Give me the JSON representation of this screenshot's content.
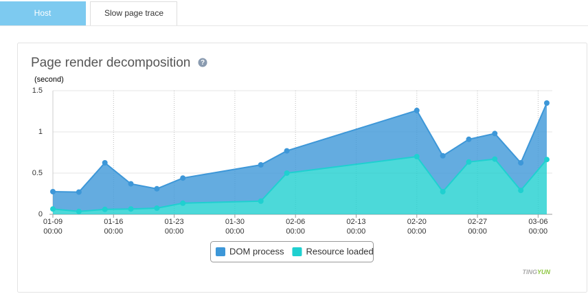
{
  "tabs": [
    "Host",
    "Slow page trace"
  ],
  "chart_data": {
    "type": "area",
    "stacked": true,
    "title": "Page render decomposition",
    "y_label": "(second)",
    "x": [
      "01-09 00:00",
      "01-12 00:00",
      "01-15 00:00",
      "01-18 00:00",
      "01-21 00:00",
      "01-24 00:00",
      "02-02 00:00",
      "02-05 00:00",
      "02-20 00:00",
      "02-23 00:00",
      "02-26 00:00",
      "03-01 00:00",
      "03-04 00:00",
      "03-07 00:00"
    ],
    "series": [
      {
        "name": "DOM process",
        "color": "#3d97d8",
        "values": [
          0.21,
          0.235,
          0.565,
          0.305,
          0.235,
          0.305,
          0.44,
          0.27,
          0.56,
          0.435,
          0.275,
          0.31,
          0.335,
          0.685
        ]
      },
      {
        "name": "Resource loaded",
        "color": "#1fd0d0",
        "values": [
          0.065,
          0.035,
          0.06,
          0.065,
          0.075,
          0.135,
          0.16,
          0.5,
          0.7,
          0.275,
          0.635,
          0.67,
          0.29,
          0.665
        ]
      }
    ],
    "xlim": [
      "01-09 00:00",
      "03-07 00:00"
    ],
    "xticks": [
      "01-09 00:00",
      "01-16 00:00",
      "01-23 00:00",
      "01-30 00:00",
      "02-06 00:00",
      "02-13 00:00",
      "02-20 00:00",
      "02-27 00:00",
      "03-06 00:00"
    ],
    "ylim": [
      0,
      1.5
    ],
    "yticks": [
      0,
      0.5,
      1,
      1.5
    ],
    "grid": true
  },
  "watermark": [
    "TING",
    "YUN"
  ]
}
